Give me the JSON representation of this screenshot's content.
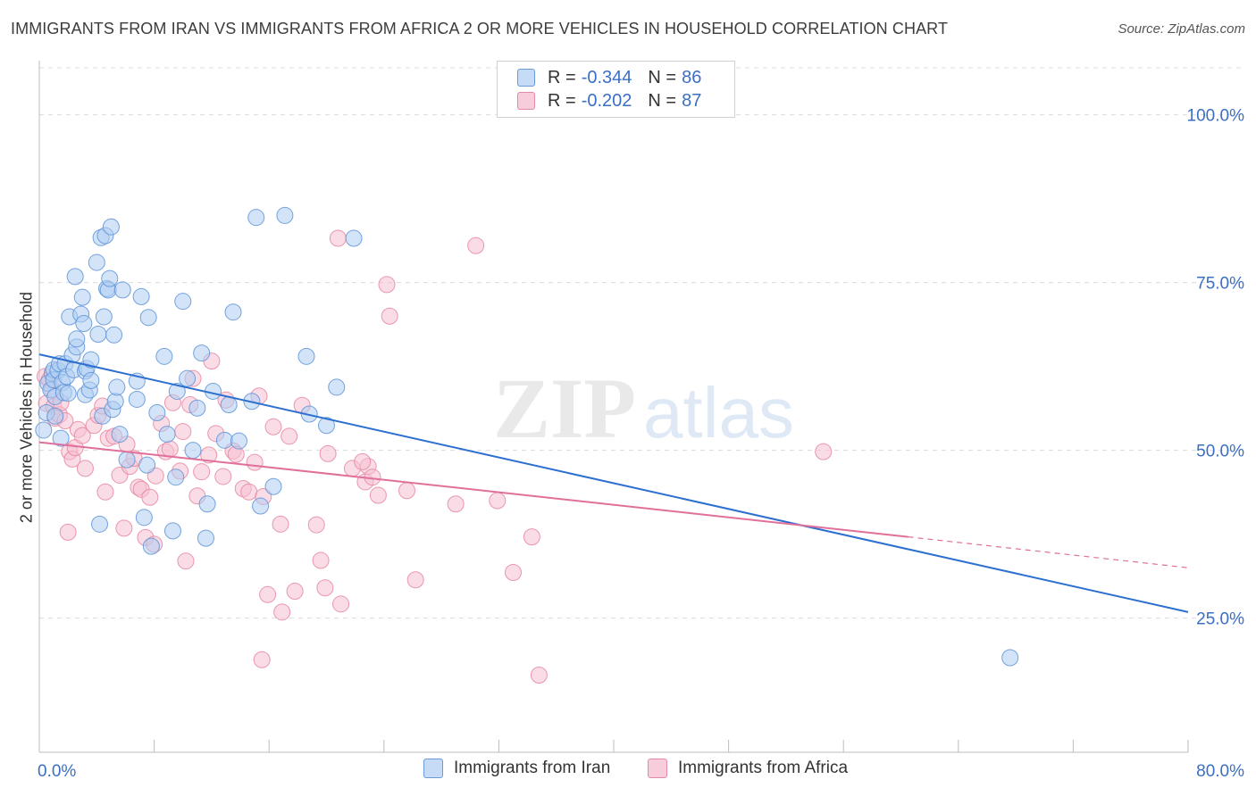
{
  "header": {
    "title": "IMMIGRANTS FROM IRAN VS IMMIGRANTS FROM AFRICA 2 OR MORE VEHICLES IN HOUSEHOLD CORRELATION CHART",
    "source": "Source: ZipAtlas.com"
  },
  "legend": {
    "r_label": "R =",
    "n_label": "N =",
    "iran": {
      "r": "-0.344",
      "n": "86"
    },
    "africa": {
      "r": "-0.202",
      "n": "87"
    }
  },
  "watermark": {
    "zip": "ZIP",
    "atlas": "atlas"
  },
  "colors": {
    "iran_fill": "#aecdf3",
    "iran_stroke": "#5f93d6",
    "iran_line": "#2d6fd0",
    "africa_fill": "#f6bfd2",
    "africa_stroke": "#e6879f",
    "africa_line": "#e0709a",
    "axis_text": "#3a6fc4",
    "grid": "#dcdcdc"
  },
  "chart_data": {
    "type": "scatter",
    "title": "IMMIGRANTS FROM IRAN VS IMMIGRANTS FROM AFRICA 2 OR MORE VEHICLES IN HOUSEHOLD CORRELATION CHART",
    "xlabel": "",
    "ylabel": "2 or more Vehicles in Household",
    "xlim": [
      0,
      80
    ],
    "ylim": [
      5,
      107
    ],
    "x_tick_labels": [
      "0.0%",
      "80.0%"
    ],
    "y_ticks": [
      25,
      50,
      75,
      100
    ],
    "y_tick_labels": [
      "25.0%",
      "50.0%",
      "75.0%",
      "100.0%"
    ],
    "series": [
      {
        "name": "Immigrants from Iran",
        "trend": {
          "x0": 0,
          "y0": 64.3,
          "x1": 80,
          "y1": 25.9
        },
        "points": [
          [
            0.5,
            55.6
          ],
          [
            0.6,
            60.0
          ],
          [
            0.8,
            59.0
          ],
          [
            0.9,
            61.5
          ],
          [
            1.0,
            62.0
          ],
          [
            1.0,
            60.5
          ],
          [
            1.1,
            58.0
          ],
          [
            1.1,
            55.1
          ],
          [
            1.3,
            61.9
          ],
          [
            1.4,
            62.9
          ],
          [
            1.5,
            51.8
          ],
          [
            1.6,
            60.1
          ],
          [
            1.7,
            58.6
          ],
          [
            1.8,
            62.9
          ],
          [
            1.9,
            61.0
          ],
          [
            2.1,
            69.9
          ],
          [
            2.3,
            64.2
          ],
          [
            2.4,
            62.0
          ],
          [
            2.5,
            75.9
          ],
          [
            2.6,
            65.4
          ],
          [
            2.6,
            66.6
          ],
          [
            2.9,
            70.3
          ],
          [
            3.0,
            72.8
          ],
          [
            3.1,
            68.9
          ],
          [
            3.2,
            58.3
          ],
          [
            3.2,
            61.8
          ],
          [
            3.3,
            62.2
          ],
          [
            3.5,
            59.0
          ],
          [
            3.6,
            60.4
          ],
          [
            3.6,
            63.5
          ],
          [
            4.0,
            78.0
          ],
          [
            4.1,
            67.3
          ],
          [
            4.2,
            39.0
          ],
          [
            4.3,
            81.7
          ],
          [
            4.4,
            55.1
          ],
          [
            4.5,
            69.9
          ],
          [
            4.6,
            82.0
          ],
          [
            4.7,
            74.1
          ],
          [
            4.8,
            73.9
          ],
          [
            4.9,
            75.6
          ],
          [
            5.0,
            83.3
          ],
          [
            5.1,
            56.1
          ],
          [
            5.2,
            67.2
          ],
          [
            5.3,
            57.3
          ],
          [
            5.4,
            59.4
          ],
          [
            5.6,
            52.4
          ],
          [
            5.8,
            73.9
          ],
          [
            6.1,
            48.6
          ],
          [
            6.8,
            60.3
          ],
          [
            6.8,
            57.6
          ],
          [
            7.1,
            72.9
          ],
          [
            7.3,
            40.0
          ],
          [
            7.5,
            47.8
          ],
          [
            7.6,
            69.8
          ],
          [
            7.8,
            35.7
          ],
          [
            8.2,
            55.6
          ],
          [
            8.7,
            64.0
          ],
          [
            8.9,
            52.4
          ],
          [
            9.3,
            38.0
          ],
          [
            9.5,
            46.0
          ],
          [
            9.6,
            58.8
          ],
          [
            10.0,
            72.2
          ],
          [
            10.3,
            60.7
          ],
          [
            10.7,
            50.0
          ],
          [
            11.0,
            56.3
          ],
          [
            11.3,
            64.5
          ],
          [
            11.6,
            36.9
          ],
          [
            11.7,
            42.0
          ],
          [
            12.1,
            58.8
          ],
          [
            12.9,
            51.5
          ],
          [
            13.2,
            56.8
          ],
          [
            13.5,
            70.6
          ],
          [
            13.9,
            51.4
          ],
          [
            14.8,
            57.3
          ],
          [
            15.1,
            84.7
          ],
          [
            15.4,
            41.7
          ],
          [
            16.3,
            44.6
          ],
          [
            17.1,
            85.0
          ],
          [
            18.6,
            64.0
          ],
          [
            18.8,
            55.4
          ],
          [
            20.0,
            53.7
          ],
          [
            20.7,
            59.4
          ],
          [
            21.9,
            81.6
          ],
          [
            67.6,
            19.1
          ],
          [
            0.3,
            53.0
          ],
          [
            2.0,
            58.5
          ]
        ]
      },
      {
        "name": "Immigrants from Africa",
        "trend": {
          "x0": 0,
          "y0": 51.2,
          "x1": 60.5,
          "y1": 37.1
        },
        "trend_dashed": {
          "x0": 60.5,
          "y0": 37.1,
          "x1": 80,
          "y1": 32.5
        },
        "points": [
          [
            0.4,
            61.0
          ],
          [
            0.5,
            57.0
          ],
          [
            0.7,
            60.5
          ],
          [
            0.9,
            59.1
          ],
          [
            1.0,
            56.5
          ],
          [
            1.1,
            54.8
          ],
          [
            1.4,
            55.3
          ],
          [
            1.5,
            57.1
          ],
          [
            1.8,
            54.4
          ],
          [
            2.0,
            37.8
          ],
          [
            2.1,
            49.8
          ],
          [
            2.3,
            48.7
          ],
          [
            2.5,
            50.4
          ],
          [
            2.7,
            53.1
          ],
          [
            3.0,
            52.2
          ],
          [
            3.2,
            47.3
          ],
          [
            3.8,
            53.7
          ],
          [
            4.1,
            55.2
          ],
          [
            4.4,
            56.6
          ],
          [
            4.6,
            43.8
          ],
          [
            4.8,
            51.8
          ],
          [
            5.2,
            52.1
          ],
          [
            5.6,
            46.3
          ],
          [
            5.9,
            38.4
          ],
          [
            6.1,
            50.9
          ],
          [
            6.3,
            47.6
          ],
          [
            6.6,
            48.8
          ],
          [
            6.9,
            44.5
          ],
          [
            7.1,
            44.2
          ],
          [
            7.4,
            37.0
          ],
          [
            7.7,
            43.0
          ],
          [
            8.0,
            36.0
          ],
          [
            8.1,
            46.2
          ],
          [
            8.5,
            54.0
          ],
          [
            8.8,
            49.8
          ],
          [
            9.1,
            50.2
          ],
          [
            9.3,
            57.1
          ],
          [
            9.8,
            46.9
          ],
          [
            10.0,
            52.8
          ],
          [
            10.2,
            33.5
          ],
          [
            10.5,
            56.8
          ],
          [
            10.7,
            60.7
          ],
          [
            11.0,
            43.2
          ],
          [
            11.3,
            46.8
          ],
          [
            11.8,
            49.3
          ],
          [
            12.0,
            63.3
          ],
          [
            12.3,
            52.5
          ],
          [
            12.8,
            46.1
          ],
          [
            13.0,
            57.5
          ],
          [
            13.5,
            49.9
          ],
          [
            13.7,
            49.4
          ],
          [
            14.2,
            44.3
          ],
          [
            14.6,
            43.8
          ],
          [
            15.0,
            48.2
          ],
          [
            15.3,
            58.1
          ],
          [
            15.6,
            43.1
          ],
          [
            15.9,
            28.5
          ],
          [
            16.3,
            53.5
          ],
          [
            16.8,
            39.0
          ],
          [
            16.9,
            25.9
          ],
          [
            17.4,
            52.1
          ],
          [
            17.8,
            29.0
          ],
          [
            18.3,
            56.7
          ],
          [
            19.3,
            38.9
          ],
          [
            19.6,
            33.6
          ],
          [
            19.9,
            29.5
          ],
          [
            20.1,
            49.5
          ],
          [
            20.8,
            81.6
          ],
          [
            21.0,
            27.1
          ],
          [
            21.8,
            47.3
          ],
          [
            22.7,
            45.3
          ],
          [
            22.9,
            47.6
          ],
          [
            23.2,
            46.0
          ],
          [
            23.6,
            43.3
          ],
          [
            24.2,
            74.7
          ],
          [
            24.4,
            70.0
          ],
          [
            25.6,
            44.0
          ],
          [
            26.2,
            30.7
          ],
          [
            29.0,
            42.0
          ],
          [
            30.4,
            80.5
          ],
          [
            31.9,
            42.5
          ],
          [
            33.0,
            31.8
          ],
          [
            34.3,
            37.1
          ],
          [
            34.8,
            16.5
          ],
          [
            54.6,
            49.8
          ],
          [
            15.5,
            18.8
          ],
          [
            22.5,
            48.3
          ]
        ]
      }
    ]
  }
}
